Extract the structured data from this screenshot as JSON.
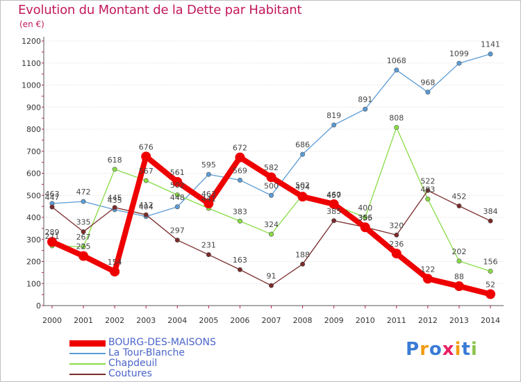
{
  "header": {
    "title": "Evolution du Montant de la Dette par Habitant",
    "unit": "(en €)"
  },
  "logo": {
    "text": "Proxiti"
  },
  "colors": {
    "title": "#c2185b",
    "legend_text": "#4a64c8",
    "grid": "#d8d8d8",
    "axis": "#555555"
  },
  "chart_data": {
    "type": "line",
    "x": [
      "2000",
      "2001",
      "2002",
      "2003",
      "2004",
      "2005",
      "2006",
      "2007",
      "2008",
      "2009",
      "2010",
      "2011",
      "2012",
      "2013",
      "2014"
    ],
    "ylim": [
      0,
      1200
    ],
    "yticks": [
      0,
      100,
      200,
      300,
      400,
      500,
      600,
      700,
      800,
      900,
      1000,
      1100,
      1200
    ],
    "grid": "horizontal",
    "legend_position": "bottom-left",
    "series": [
      {
        "name": "BOURG-DES-MAISONS",
        "color": "#ee0000",
        "emphasis": "thick",
        "values": [
          289,
          225,
          154,
          676,
          561,
          463,
          672,
          582,
          494,
          460,
          355,
          236,
          122,
          88,
          52
        ],
        "labels": [
          "289",
          "225",
          "154",
          "676",
          "561",
          "463",
          "672",
          "582",
          "494",
          "460",
          "355",
          "236",
          "122",
          "88",
          "52"
        ]
      },
      {
        "name": "La Tour-Blanche",
        "color": "#5b9bd5",
        "values": [
          463,
          472,
          435,
          404,
          448,
          595,
          569,
          500,
          686,
          819,
          891,
          1068,
          968,
          1099,
          1141
        ],
        "labels": [
          "463",
          "472",
          "435",
          "404",
          "448",
          "595",
          "569",
          "500",
          "686",
          "819",
          "891",
          "1068",
          "968",
          "1099",
          "1141"
        ]
      },
      {
        "name": "Chapdeuil",
        "color": "#88dd44",
        "values": [
          271,
          267,
          618,
          567,
          502,
          441,
          383,
          324,
          502,
          457,
          400,
          808,
          483,
          202,
          156
        ],
        "labels": [
          "271",
          "267",
          "618",
          "567",
          "502",
          "441",
          "383",
          "324",
          "502",
          "457",
          "400",
          "808",
          "483",
          "202",
          "156"
        ]
      },
      {
        "name": "Coutures",
        "color": "#7a2a2a",
        "values": [
          447,
          335,
          445,
          412,
          297,
          231,
          163,
          91,
          188,
          385,
          356,
          320,
          522,
          452,
          384
        ],
        "labels": [
          "447",
          "335",
          "445",
          "412",
          "297",
          "231",
          "163",
          "91",
          "188",
          "385",
          "356",
          "320",
          "522",
          "452",
          "384"
        ]
      }
    ]
  }
}
